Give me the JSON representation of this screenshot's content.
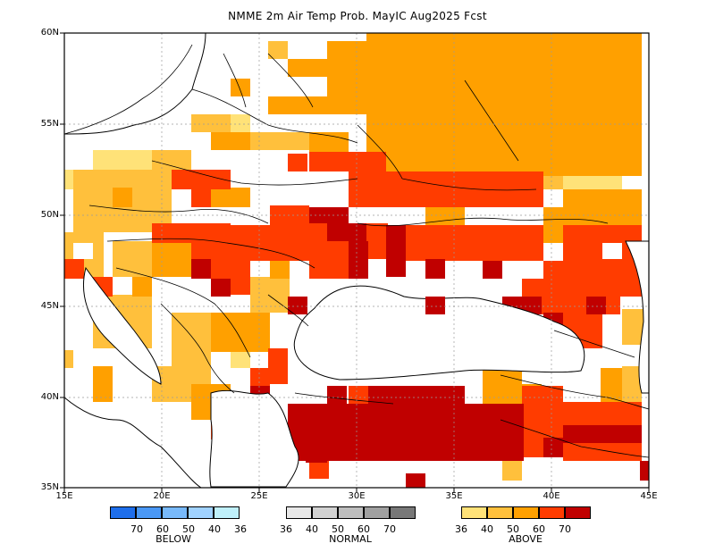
{
  "title": "NMME 2m Air Temp Prob. MayIC  Aug2025 Fcst",
  "axes": {
    "lon_ticks": [
      "15E",
      "20E",
      "25E",
      "30E",
      "35E",
      "40E",
      "45E"
    ],
    "lat_ticks": [
      "60N",
      "55N",
      "50N",
      "45N",
      "40N",
      "35N"
    ]
  },
  "legend": {
    "below": {
      "label": "BELOW",
      "ticks": [
        "70",
        "60",
        "50",
        "40",
        "36"
      ],
      "colors": [
        "#1E6EEB",
        "#4A98F5",
        "#78B9FA",
        "#A0D2FF",
        "#BFF0FA"
      ]
    },
    "normal": {
      "label": "NORMAL",
      "ticks": [
        "36",
        "40",
        "50",
        "60",
        "70"
      ],
      "colors": [
        "#E8E8E8",
        "#D2D2D2",
        "#BEBEBE",
        "#A0A0A0",
        "#787878"
      ]
    },
    "above": {
      "label": "ABOVE",
      "ticks": [
        "36",
        "40",
        "50",
        "60",
        "70"
      ],
      "colors": [
        "#FFE278",
        "#FFC03C",
        "#FFA000",
        "#FF3C00",
        "#C00000"
      ]
    }
  }
}
